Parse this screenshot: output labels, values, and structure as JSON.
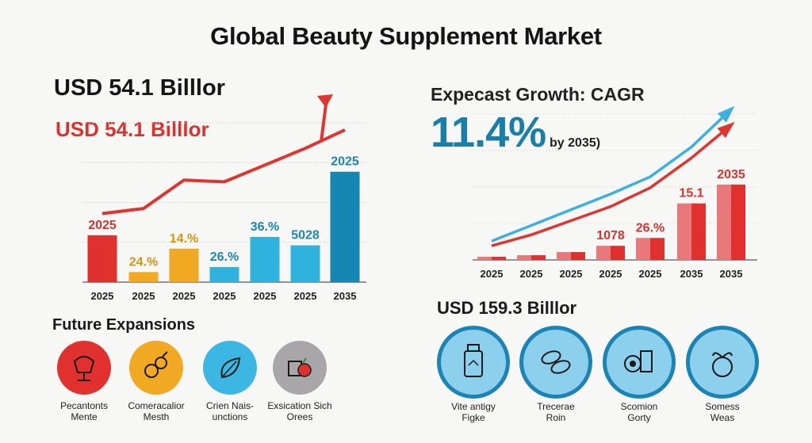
{
  "title": "Global Beauty Supplement Market",
  "left_panel": {
    "headline": "USD 54.1 Billlor",
    "subheadline": "USD 54.1 Billlor"
  },
  "right_panel": {
    "headline": "Expecast Growth: CAGR",
    "cagr_value": "11.4%",
    "cagr_note": "by 2035)",
    "bottom_headline": "USD 159.3 Billlor"
  },
  "chart_data": [
    {
      "type": "bar",
      "categories": [
        "2025",
        "2025",
        "2025",
        "2025",
        "2025",
        "2025",
        "2035"
      ],
      "values": [
        28,
        6,
        20,
        9,
        27,
        22,
        66
      ],
      "data_labels": [
        "2025",
        "24.%",
        "14.%",
        "26.%",
        "36.%",
        "5028",
        "2025"
      ],
      "colors": [
        "#e0312f",
        "#f1a923",
        "#f1a923",
        "#2fb3de",
        "#2fb3de",
        "#2fb3de",
        "#1687b3"
      ],
      "trend_line": [
        41,
        44,
        61,
        60,
        70,
        80,
        91
      ],
      "trend_color": "#dd3530",
      "ylim": [
        0,
        100
      ],
      "grid": true
    },
    {
      "type": "bar",
      "categories": [
        "2025",
        "2025",
        "2025",
        "2025",
        "2025",
        "2035",
        "2035"
      ],
      "values": [
        2,
        3,
        5,
        9,
        14,
        36,
        48
      ],
      "data_labels": [
        "",
        "",
        "",
        "1078",
        "26.%",
        "15.1",
        "2035"
      ],
      "bar_color": "#e8787a",
      "bar_accent": "#e0312f",
      "lines": [
        {
          "color": "#3fb0de",
          "values": [
            12,
            22,
            32,
            42,
            53,
            72,
            96
          ]
        },
        {
          "color": "#dd3530",
          "values": [
            9,
            16,
            25,
            34,
            46,
            65,
            86
          ]
        }
      ],
      "ylim": [
        0,
        100
      ],
      "grid": true
    }
  ],
  "future_expansions": {
    "title": "Future Expansions",
    "items": [
      {
        "label_1": "Pecantonts",
        "label_2": "Mente",
        "color": "#e0312f",
        "icon": "flower-bowl-icon"
      },
      {
        "label_1": "Comeracalior",
        "label_2": "Mesth",
        "color": "#f1a923",
        "icon": "berries-icon"
      },
      {
        "label_1": "Crien Nais-",
        "label_2": "unctions",
        "color": "#3cb6e3",
        "icon": "leaf-icon"
      },
      {
        "label_1": "Exsication Sich",
        "label_2": "Orees",
        "color": "#a8a6a9",
        "icon": "fruit-box-icon"
      }
    ]
  },
  "product_icons": {
    "items": [
      {
        "label_1": "Vite antigy",
        "label_2": "Figke",
        "icon": "supplement-bottle-icon"
      },
      {
        "label_1": "Trecerae",
        "label_2": "Roin",
        "icon": "seeds-icon"
      },
      {
        "label_1": "Scomion",
        "label_2": "Gorty",
        "icon": "capsule-pack-icon"
      },
      {
        "label_1": "Somess",
        "label_2": "Weas",
        "icon": "berry-icon"
      }
    ],
    "ring_color": "#1c84b5",
    "fill_color": "#8dd0ee"
  }
}
